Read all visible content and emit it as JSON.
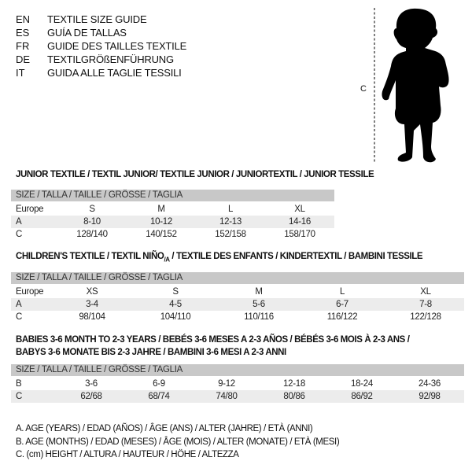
{
  "languages": [
    {
      "code": "EN",
      "text": "TEXTILE SIZE GUIDE"
    },
    {
      "code": "ES",
      "text": "GUÍA DE TALLAS"
    },
    {
      "code": "FR",
      "text": "GUIDE DES TAILLES TEXTILE"
    },
    {
      "code": "DE",
      "text": "TEXTILGRÖßENFÜHRUNG"
    },
    {
      "code": "IT",
      "text": "GUIDA ALLE TAGLIE TESSILI"
    }
  ],
  "figure": {
    "measure_label": "C",
    "icon": "child-silhouette"
  },
  "junior": {
    "title": "JUNIOR TEXTILE / TEXTIL JUNIOR/ TEXTILE JUNIOR / JUNIORTEXTIL / JUNIOR TESSILE",
    "header": "SIZE / TALLA / TAILLE / GRÖSSE / TAGLIA",
    "rows": [
      {
        "label": "Europe",
        "cells": [
          "S",
          "M",
          "L",
          "XL"
        ]
      },
      {
        "label": "A",
        "cells": [
          "8-10",
          "10-12",
          "12-13",
          "14-16"
        ]
      },
      {
        "label": "C",
        "cells": [
          "128/140",
          "140/152",
          "152/158",
          "158/170"
        ]
      }
    ]
  },
  "children": {
    "title_pre": "CHILDREN'S TEXTILE / TEXTIL NIÑO",
    "title_sub": "/A",
    "title_post": " / TEXTILE DES ENFANTS / KINDERTEXTIL / BAMBINI TESSILE",
    "header": "SIZE / TALLA / TAILLE / GRÖSSE / TAGLIA",
    "rows": [
      {
        "label": "Europe",
        "cells": [
          "XS",
          "S",
          "M",
          "L",
          "XL"
        ]
      },
      {
        "label": "A",
        "cells": [
          "3-4",
          "4-5",
          "5-6",
          "6-7",
          "7-8"
        ]
      },
      {
        "label": "C",
        "cells": [
          "98/104",
          "104/110",
          "110/116",
          "116/122",
          "122/128"
        ]
      }
    ]
  },
  "babies": {
    "title_line1": "BABIES 3-6 MONTH TO 2-3 YEARS / BEBÉS 3-6 MESES A 2-3 AÑOS / BÉBÉS 3-6 MOIS À 2-3 ANS /",
    "title_line2": "BABYS 3-6 MONATE BIS 2-3 JAHRE / BAMBINI 3-6 MESI A 2-3 ANNI",
    "header": "SIZE / TALLA / TAILLE / GRÖSSE / TAGLIA",
    "rows": [
      {
        "label": "B",
        "cells": [
          "3-6",
          "6-9",
          "9-12",
          "12-18",
          "18-24",
          "24-36"
        ]
      },
      {
        "label": "C",
        "cells": [
          "62/68",
          "68/74",
          "74/80",
          "80/86",
          "86/92",
          "92/98"
        ]
      }
    ]
  },
  "legend": [
    "A. AGE (YEARS) / EDAD (AÑOS) / ÂGE (ANS) / ALTER (JAHRE) / ETÀ (ANNI)",
    "B. AGE (MONTHS) / EDAD (MESES) / ÂGE (MOIS) / ALTER (MONATE) / ETÀ (MESI)",
    "C. (cm) HEIGHT / ALTURA / HAUTEUR / HÖHE / ALTEZZA"
  ],
  "colors": {
    "header_bar": "#c8c8c8",
    "alt_row": "#ececec",
    "text": "#111111"
  }
}
